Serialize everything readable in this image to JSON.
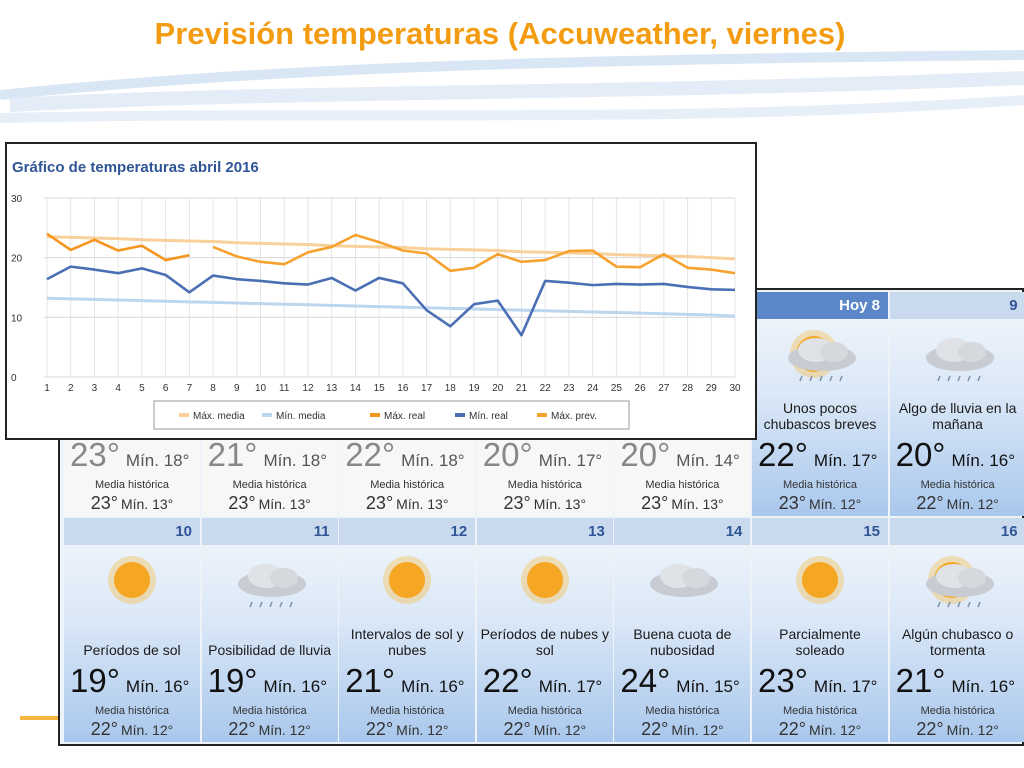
{
  "slide_title": "Previsión temperaturas (Accuweather, viernes)",
  "chart_data": {
    "type": "line",
    "title": "Gráfico de temperaturas abril 2016",
    "x": [
      1,
      2,
      3,
      4,
      5,
      6,
      7,
      8,
      9,
      10,
      11,
      12,
      13,
      14,
      15,
      16,
      17,
      18,
      19,
      20,
      21,
      22,
      23,
      24,
      25,
      26,
      27,
      28,
      29,
      30
    ],
    "xlim": [
      1,
      30
    ],
    "ylim": [
      0,
      30
    ],
    "yticks": [
      0,
      10,
      20,
      30
    ],
    "grid": true,
    "series": [
      {
        "name": "Máx. media",
        "color": "#f9cf9a",
        "values": [
          23.5,
          23.4,
          23.3,
          23.2,
          23.0,
          22.9,
          22.8,
          22.7,
          22.5,
          22.4,
          22.3,
          22.2,
          22.0,
          21.9,
          21.8,
          21.7,
          21.5,
          21.4,
          21.3,
          21.2,
          21.0,
          20.9,
          20.8,
          20.7,
          20.5,
          20.4,
          20.3,
          20.2,
          20.0,
          19.8
        ]
      },
      {
        "name": "Mín. media",
        "color": "#bcd6ee",
        "values": [
          13.2,
          13.1,
          13.0,
          12.9,
          12.8,
          12.7,
          12.6,
          12.5,
          12.4,
          12.3,
          12.2,
          12.1,
          12.0,
          11.9,
          11.8,
          11.7,
          11.6,
          11.5,
          11.4,
          11.3,
          11.2,
          11.1,
          11.0,
          10.9,
          10.8,
          10.7,
          10.6,
          10.5,
          10.4,
          10.2
        ]
      },
      {
        "name": "Máx. real",
        "color": "#f7941d",
        "values": [
          24.0,
          21.3,
          23.0,
          21.2,
          22.0,
          19.6,
          20.4,
          null,
          null,
          null,
          null,
          null,
          null,
          null,
          null,
          null,
          null,
          null,
          null,
          null,
          null,
          null,
          null,
          null,
          null,
          null,
          null,
          null,
          null,
          null
        ]
      },
      {
        "name": "Mín. real",
        "color": "#4a6fb5",
        "values": [
          16.4,
          18.5,
          18.0,
          17.4,
          18.2,
          17.1,
          14.2,
          17.0,
          16.4,
          16.1,
          15.7,
          15.5,
          16.6,
          14.5,
          16.6,
          15.7,
          11.2,
          8.5,
          12.2,
          12.8,
          7.0,
          16.1,
          15.8,
          15.4,
          15.6,
          15.5,
          15.6,
          15.1,
          14.7,
          14.6
        ]
      },
      {
        "name": "Máx. prev.",
        "color": "#f7a12e",
        "values": [
          null,
          null,
          null,
          null,
          null,
          null,
          null,
          21.8,
          20.2,
          19.3,
          18.9,
          20.9,
          21.8,
          23.8,
          22.6,
          21.2,
          20.7,
          17.8,
          18.3,
          20.6,
          19.3,
          19.6,
          21.1,
          21.2,
          18.5,
          18.4,
          20.6,
          18.3,
          18.0,
          17.4
        ]
      }
    ]
  },
  "forecast": {
    "hist_label": "Media histórica",
    "days": [
      {
        "high": "23°",
        "low": "Mín. 18°",
        "hist_high": "23°",
        "hist_low": "Mín. 13°"
      },
      {
        "high": "21°",
        "low": "Mín. 18°",
        "hist_high": "23°",
        "hist_low": "Mín. 13°"
      },
      {
        "high": "22°",
        "low": "Mín. 18°",
        "hist_high": "23°",
        "hist_low": "Mín. 13°"
      },
      {
        "high": "20°",
        "low": "Mín. 17°",
        "hist_high": "23°",
        "hist_low": "Mín. 13°"
      },
      {
        "high": "20°",
        "low": "Mín. 14°",
        "hist_high": "23°",
        "hist_low": "Mín. 13°"
      },
      {
        "day": "Hoy 8",
        "condition": "Unos pocos chubascos breves",
        "high": "22°",
        "low": "Mín. 17°",
        "hist_high": "23°",
        "hist_low": "Mín. 12°"
      },
      {
        "day": "9",
        "condition": "Algo de lluvia en la mañana",
        "high": "20°",
        "low": "Mín. 16°",
        "hist_high": "22°",
        "hist_low": "Mín. 12°"
      },
      {
        "day": "10",
        "condition": "Períodos de sol",
        "high": "19°",
        "low": "Mín. 16°",
        "hist_high": "22°",
        "hist_low": "Mín. 12°"
      },
      {
        "day": "11",
        "condition": "Posibilidad de lluvia",
        "high": "19°",
        "low": "Mín. 16°",
        "hist_high": "22°",
        "hist_low": "Mín. 12°"
      },
      {
        "day": "12",
        "condition": "Intervalos de sol y nubes",
        "high": "21°",
        "low": "Mín. 16°",
        "hist_high": "22°",
        "hist_low": "Mín. 12°"
      },
      {
        "day": "13",
        "condition": "Períodos de nubes y sol",
        "high": "22°",
        "low": "Mín. 17°",
        "hist_high": "22°",
        "hist_low": "Mín. 12°"
      },
      {
        "day": "14",
        "condition": "Buena cuota de nubosidad",
        "high": "24°",
        "low": "Mín. 15°",
        "hist_high": "22°",
        "hist_low": "Mín. 12°"
      },
      {
        "day": "15",
        "condition": "Parcialmente soleado",
        "high": "23°",
        "low": "Mín. 17°",
        "hist_high": "22°",
        "hist_low": "Mín. 12°"
      },
      {
        "day": "16",
        "condition": "Algún chubasco o tormenta",
        "high": "21°",
        "low": "Mín. 16°",
        "hist_high": "22°",
        "hist_low": "Mín. 12°"
      }
    ]
  }
}
